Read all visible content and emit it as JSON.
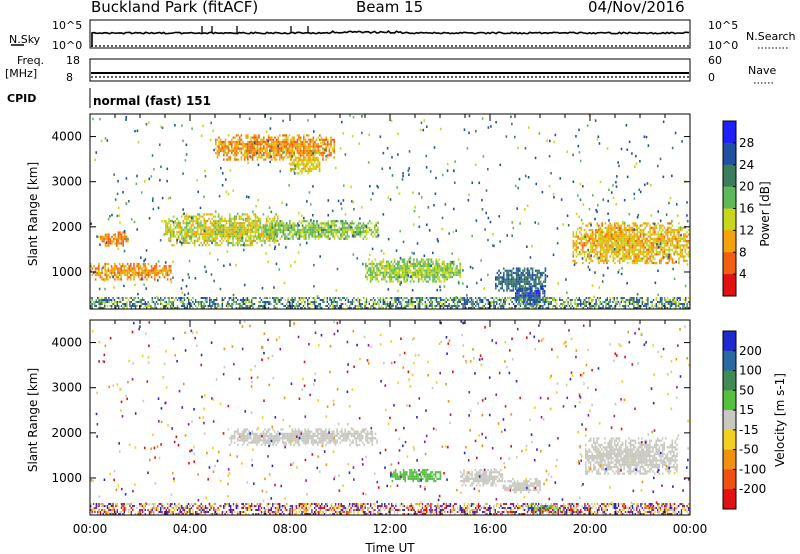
{
  "header": {
    "title": "Buckland Park (fitACF)",
    "beam": "Beam 15",
    "date": "04/Nov/2016"
  },
  "strip_panels": {
    "nsky_label": "N.Sky",
    "nsky_ticks": [
      "10^5",
      "10^0"
    ],
    "nsearch_label": "N.Search",
    "nsearch_ticks": [
      "10^5",
      "10^0"
    ],
    "freq_label_line1": "Freq.",
    "freq_label_line2": "[MHz]",
    "freq_ticks": [
      "18",
      "8"
    ],
    "nave_label": "Nave",
    "nave_ticks": [
      "60",
      "0"
    ],
    "cpid_label": "CPID",
    "cpid_value": "normal (fast) 151"
  },
  "chart_data": [
    {
      "type": "heatmap",
      "title": "Power",
      "ylabel": "Slant Range [km]",
      "ylim": [
        180,
        4500
      ],
      "yticks": [
        "4000",
        "3000",
        "2000",
        "1000"
      ],
      "colorbar_label": "Power [dB]",
      "colorbar_ticks": [
        "28",
        "24",
        "20",
        "16",
        "12",
        "8",
        "4"
      ],
      "colorbar_colors": [
        "#2020ff",
        "#2050a0",
        "#3b7c5c",
        "#5fb85a",
        "#c8d61a",
        "#f2a30c",
        "#f06010",
        "#e21010"
      ],
      "patches": [
        {
          "t": [
            0.0,
            3.2
          ],
          "range": [
            850,
            1200
          ],
          "value": 9
        },
        {
          "t": [
            0.4,
            1.5
          ],
          "range": [
            1600,
            1900
          ],
          "value": 8
        },
        {
          "t": [
            3.0,
            7.5
          ],
          "range": [
            1600,
            2300
          ],
          "value": 14
        },
        {
          "t": [
            7.0,
            11.5
          ],
          "range": [
            1750,
            2150
          ],
          "value": 17
        },
        {
          "t": [
            5.0,
            9.8
          ],
          "range": [
            3500,
            4050
          ],
          "value": 9
        },
        {
          "t": [
            8.0,
            9.2
          ],
          "range": [
            3200,
            3600
          ],
          "value": 12
        },
        {
          "t": [
            11.0,
            14.8
          ],
          "range": [
            800,
            1300
          ],
          "value": 16
        },
        {
          "t": [
            16.2,
            18.2
          ],
          "range": [
            600,
            1100
          ],
          "value": 24
        },
        {
          "t": [
            17.0,
            18.2
          ],
          "range": [
            250,
            700
          ],
          "value": 26
        },
        {
          "t": [
            19.3,
            24.0
          ],
          "range": [
            1200,
            2100
          ],
          "value": 11
        }
      ]
    },
    {
      "type": "heatmap",
      "title": "Velocity",
      "ylabel": "Slant Range [km]",
      "xlabel": "Time UT",
      "xlim": [
        0,
        24
      ],
      "xticks": [
        "00:00",
        "04:00",
        "08:00",
        "12:00",
        "16:00",
        "20:00",
        "00:00"
      ],
      "ylim": [
        180,
        4500
      ],
      "yticks": [
        "4000",
        "3000",
        "2000",
        "1000"
      ],
      "colorbar_label": "Velocity [m s-1]",
      "colorbar_ticks": [
        "200",
        "100",
        "50",
        "15",
        "-15",
        "-50",
        "-100",
        "-200"
      ],
      "colorbar_colors": [
        "#1e2ad0",
        "#2a6aa0",
        "#3f8a55",
        "#55c040",
        "#c8c8c0",
        "#f0d020",
        "#f29010",
        "#f05010",
        "#e21010"
      ],
      "patches": [
        {
          "t": [
            5.5,
            11.5
          ],
          "range": [
            1750,
            2100
          ],
          "value": 0
        },
        {
          "t": [
            12.0,
            14.0
          ],
          "range": [
            950,
            1200
          ],
          "value": 30
        },
        {
          "t": [
            14.8,
            16.5
          ],
          "range": [
            850,
            1200
          ],
          "value": 0
        },
        {
          "t": [
            16.5,
            18.0
          ],
          "range": [
            700,
            1000
          ],
          "value": 0
        },
        {
          "t": [
            17.5,
            18.8
          ],
          "range": [
            250,
            450
          ],
          "value": 40
        },
        {
          "t": [
            19.8,
            23.5
          ],
          "range": [
            1100,
            1900
          ],
          "value": 0
        }
      ]
    }
  ]
}
